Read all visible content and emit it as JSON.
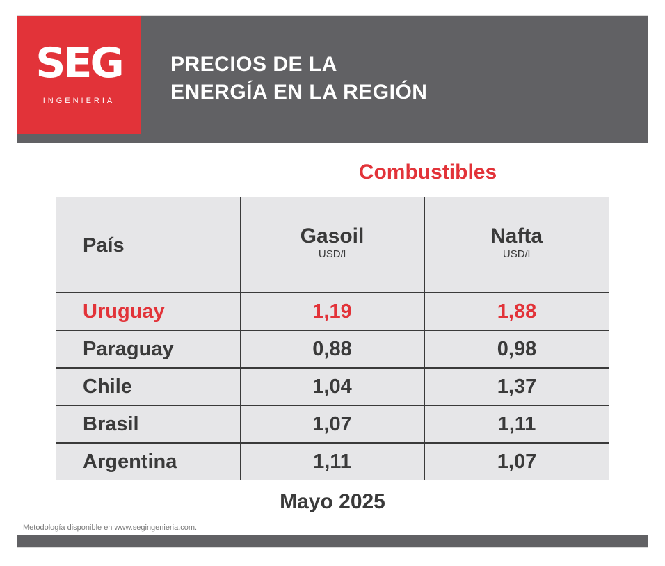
{
  "logo": {
    "main": "SEG",
    "sub": "INGENIERIA"
  },
  "header": {
    "title_line1": "PRECIOS DE LA",
    "title_line2": "ENERGÍA EN LA REGIÓN"
  },
  "section_title": "Combustibles",
  "table": {
    "columns": [
      {
        "name": "País",
        "unit": ""
      },
      {
        "name": "Gasoil",
        "unit": "USD/l"
      },
      {
        "name": "Nafta",
        "unit": "USD/l"
      }
    ],
    "rows": [
      {
        "country": "Uruguay",
        "gasoil": "1,19",
        "nafta": "1,88",
        "highlight": true
      },
      {
        "country": "Paraguay",
        "gasoil": "0,88",
        "nafta": "0,98",
        "highlight": false
      },
      {
        "country": "Chile",
        "gasoil": "1,04",
        "nafta": "1,37",
        "highlight": false
      },
      {
        "country": "Brasil",
        "gasoil": "1,07",
        "nafta": "1,11",
        "highlight": false
      },
      {
        "country": "Argentina",
        "gasoil": "1,11",
        "nafta": "1,07",
        "highlight": false
      }
    ]
  },
  "period": "Mayo 2025",
  "footnote": "Metodología disponible en www.segingenieria.com.",
  "colors": {
    "accent": "#e23339",
    "header_bg": "#616164",
    "table_bg": "#e6e6e8",
    "text": "#3a3a3a"
  }
}
